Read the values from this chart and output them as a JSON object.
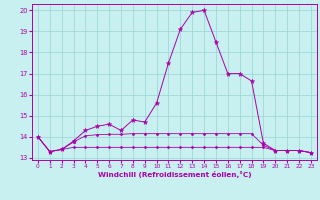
{
  "xlabel": "Windchill (Refroidissement éolien,°C)",
  "ylabel": "",
  "bg_color": "#c8f0f0",
  "grid_color": "#a0d8d8",
  "line_color": "#aa00aa",
  "xlim": [
    -0.5,
    23.5
  ],
  "ylim": [
    12.9,
    20.3
  ],
  "yticks": [
    13,
    14,
    15,
    16,
    17,
    18,
    19,
    20
  ],
  "xticks": [
    0,
    1,
    2,
    3,
    4,
    5,
    6,
    7,
    8,
    9,
    10,
    11,
    12,
    13,
    14,
    15,
    16,
    17,
    18,
    19,
    20,
    21,
    22,
    23
  ],
  "series": [
    {
      "y": [
        14.0,
        13.3,
        13.4,
        13.8,
        14.3,
        14.5,
        14.6,
        14.3,
        14.8,
        14.7,
        15.6,
        17.5,
        19.1,
        19.9,
        20.0,
        18.5,
        17.0,
        17.0,
        16.65,
        13.7,
        13.35,
        13.35,
        13.35,
        13.25
      ],
      "marker": "*",
      "markersize": 3.5,
      "lw": 0.7
    },
    {
      "y": [
        14.0,
        13.3,
        13.4,
        13.5,
        13.5,
        13.5,
        13.5,
        13.5,
        13.5,
        13.5,
        13.5,
        13.5,
        13.5,
        13.5,
        13.5,
        13.5,
        13.5,
        13.5,
        13.5,
        13.5,
        13.35,
        13.35,
        13.35,
        13.25
      ],
      "marker": "D",
      "markersize": 1.5,
      "lw": 0.6
    },
    {
      "y": [
        14.0,
        13.3,
        13.4,
        13.75,
        14.05,
        14.1,
        14.12,
        14.12,
        14.15,
        14.15,
        14.15,
        14.15,
        14.15,
        14.15,
        14.15,
        14.15,
        14.15,
        14.15,
        14.15,
        13.6,
        13.35,
        13.35,
        13.35,
        13.25
      ],
      "marker": "D",
      "markersize": 1.5,
      "lw": 0.6
    }
  ]
}
